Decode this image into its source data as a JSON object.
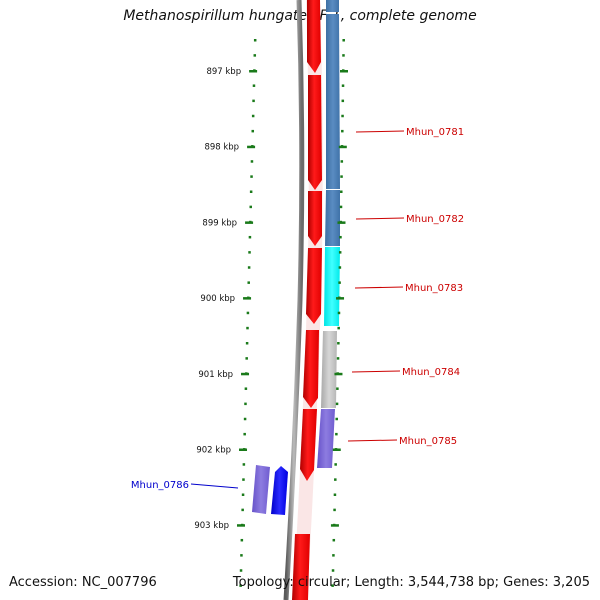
{
  "title": "Methanospirillum hungatei JF-1, complete genome",
  "accession": "Accession: NC_007796",
  "topology": "Topology: circular; Length: 3,544,738 bp; Genes: 3,205",
  "ticks": [
    {
      "label": "897 kbp",
      "pos": 897
    },
    {
      "label": "898 kbp",
      "pos": 898
    },
    {
      "label": "899 kbp",
      "pos": 899
    },
    {
      "label": "900 kbp",
      "pos": 900
    },
    {
      "label": "901 kbp",
      "pos": 901
    },
    {
      "label": "902 kbp",
      "pos": 902
    },
    {
      "label": "903 kbp",
      "pos": 903
    }
  ],
  "genes": [
    {
      "name": "Mhun_0781",
      "color": "#cc0000"
    },
    {
      "name": "Mhun_0782",
      "color": "#cc0000"
    },
    {
      "name": "Mhun_0783",
      "color": "#cc0000"
    },
    {
      "name": "Mhun_0784",
      "color": "#cc0000"
    },
    {
      "name": "Mhun_0785",
      "color": "#cc0000"
    },
    {
      "name": "Mhun_0786",
      "color": "#0000cc"
    }
  ],
  "colors": {
    "forward_strand": "#ff0000",
    "tick": "#1a7a1a",
    "backbone": "#777777",
    "steelblue": "#4a7fb5",
    "cyan": "#00ffff",
    "gray": "#bdbdbd",
    "slateblue": "#7b68d8",
    "blue": "#0000ff"
  }
}
